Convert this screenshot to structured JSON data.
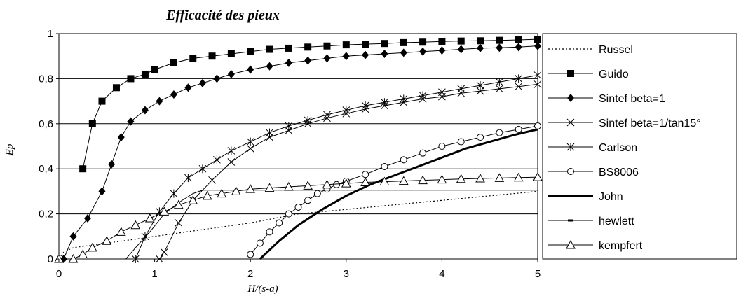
{
  "chart_data": {
    "type": "line",
    "title": "Efficacité des pieux",
    "xlabel": "H/(s-a)",
    "ylabel": "Ep",
    "xlim": [
      0,
      5
    ],
    "ylim": [
      0,
      1
    ],
    "x_ticks": [
      "0",
      "1",
      "2",
      "3",
      "4",
      "5"
    ],
    "y_ticks": [
      "0",
      "0,2",
      "0,4",
      "0,6",
      "0,8",
      "1"
    ],
    "grid": "horizontal",
    "legend": "right",
    "series": [
      {
        "name": "Russel",
        "style": "dotted",
        "marker": "none",
        "points": [
          [
            0,
            0
          ],
          [
            0.05,
            0.03
          ],
          [
            0.15,
            0.05
          ],
          [
            0.5,
            0.07
          ],
          [
            1.0,
            0.1
          ],
          [
            1.5,
            0.13
          ],
          [
            2.0,
            0.16
          ],
          [
            2.5,
            0.2
          ],
          [
            3.0,
            0.22
          ],
          [
            3.5,
            0.24
          ],
          [
            4.0,
            0.26
          ],
          [
            4.5,
            0.28
          ],
          [
            5.0,
            0.3
          ]
        ]
      },
      {
        "name": "Guido",
        "style": "solid",
        "marker": "square",
        "points": [
          [
            0.25,
            0.4
          ],
          [
            0.35,
            0.6
          ],
          [
            0.45,
            0.7
          ],
          [
            0.6,
            0.76
          ],
          [
            0.75,
            0.8
          ],
          [
            0.9,
            0.82
          ],
          [
            1.0,
            0.84
          ],
          [
            1.2,
            0.87
          ],
          [
            1.4,
            0.89
          ],
          [
            1.6,
            0.9
          ],
          [
            1.8,
            0.91
          ],
          [
            2.0,
            0.92
          ],
          [
            2.2,
            0.93
          ],
          [
            2.4,
            0.935
          ],
          [
            2.6,
            0.94
          ],
          [
            2.8,
            0.945
          ],
          [
            3.0,
            0.95
          ],
          [
            3.2,
            0.953
          ],
          [
            3.4,
            0.956
          ],
          [
            3.6,
            0.96
          ],
          [
            3.8,
            0.962
          ],
          [
            4.0,
            0.965
          ],
          [
            4.2,
            0.967
          ],
          [
            4.4,
            0.968
          ],
          [
            4.6,
            0.97
          ],
          [
            4.8,
            0.972
          ],
          [
            5.0,
            0.975
          ]
        ]
      },
      {
        "name": "Sintef beta=1",
        "style": "solid",
        "marker": "diamond",
        "points": [
          [
            0.05,
            0.0
          ],
          [
            0.15,
            0.1
          ],
          [
            0.3,
            0.18
          ],
          [
            0.45,
            0.3
          ],
          [
            0.55,
            0.42
          ],
          [
            0.65,
            0.54
          ],
          [
            0.75,
            0.61
          ],
          [
            0.9,
            0.66
          ],
          [
            1.05,
            0.7
          ],
          [
            1.2,
            0.73
          ],
          [
            1.35,
            0.76
          ],
          [
            1.5,
            0.78
          ],
          [
            1.65,
            0.8
          ],
          [
            1.8,
            0.82
          ],
          [
            2.0,
            0.84
          ],
          [
            2.2,
            0.855
          ],
          [
            2.4,
            0.87
          ],
          [
            2.6,
            0.88
          ],
          [
            2.8,
            0.89
          ],
          [
            3.0,
            0.9
          ],
          [
            3.2,
            0.905
          ],
          [
            3.4,
            0.91
          ],
          [
            3.6,
            0.915
          ],
          [
            3.8,
            0.92
          ],
          [
            4.0,
            0.925
          ],
          [
            4.2,
            0.93
          ],
          [
            4.4,
            0.935
          ],
          [
            4.6,
            0.937
          ],
          [
            4.8,
            0.94
          ],
          [
            5.0,
            0.945
          ]
        ]
      },
      {
        "name": "Sintef beta=1/tan15°",
        "style": "solid",
        "marker": "x",
        "points": [
          [
            1.05,
            0.0
          ],
          [
            1.1,
            0.03
          ],
          [
            1.25,
            0.16
          ],
          [
            1.4,
            0.26
          ],
          [
            1.6,
            0.35
          ],
          [
            1.8,
            0.43
          ],
          [
            2.0,
            0.49
          ],
          [
            2.2,
            0.54
          ],
          [
            2.4,
            0.57
          ],
          [
            2.6,
            0.6
          ],
          [
            2.8,
            0.625
          ],
          [
            3.0,
            0.645
          ],
          [
            3.2,
            0.665
          ],
          [
            3.4,
            0.68
          ],
          [
            3.6,
            0.695
          ],
          [
            3.8,
            0.71
          ],
          [
            4.0,
            0.72
          ],
          [
            4.2,
            0.735
          ],
          [
            4.4,
            0.745
          ],
          [
            4.6,
            0.755
          ],
          [
            4.8,
            0.765
          ],
          [
            5.0,
            0.775
          ]
        ]
      },
      {
        "name": "Carlson",
        "style": "solid",
        "marker": "star",
        "points": [
          [
            0.8,
            0.0
          ],
          [
            0.9,
            0.1
          ],
          [
            1.05,
            0.21
          ],
          [
            1.2,
            0.29
          ],
          [
            1.35,
            0.36
          ],
          [
            1.5,
            0.4
          ],
          [
            1.65,
            0.44
          ],
          [
            1.8,
            0.48
          ],
          [
            2.0,
            0.52
          ],
          [
            2.2,
            0.56
          ],
          [
            2.4,
            0.59
          ],
          [
            2.6,
            0.615
          ],
          [
            2.8,
            0.64
          ],
          [
            3.0,
            0.66
          ],
          [
            3.2,
            0.68
          ],
          [
            3.4,
            0.695
          ],
          [
            3.6,
            0.71
          ],
          [
            3.8,
            0.725
          ],
          [
            4.0,
            0.74
          ],
          [
            4.2,
            0.755
          ],
          [
            4.4,
            0.77
          ],
          [
            4.6,
            0.785
          ],
          [
            4.8,
            0.8
          ],
          [
            5.0,
            0.815
          ]
        ]
      },
      {
        "name": "BS8006",
        "style": "solid",
        "marker": "circle",
        "points": [
          [
            2.0,
            0.02
          ],
          [
            2.1,
            0.07
          ],
          [
            2.2,
            0.12
          ],
          [
            2.3,
            0.16
          ],
          [
            2.4,
            0.2
          ],
          [
            2.5,
            0.23
          ],
          [
            2.6,
            0.26
          ],
          [
            2.7,
            0.29
          ],
          [
            2.8,
            0.31
          ],
          [
            2.9,
            0.33
          ],
          [
            3.0,
            0.345
          ],
          [
            3.2,
            0.375
          ],
          [
            3.4,
            0.41
          ],
          [
            3.6,
            0.44
          ],
          [
            3.8,
            0.47
          ],
          [
            4.0,
            0.5
          ],
          [
            4.2,
            0.52
          ],
          [
            4.4,
            0.54
          ],
          [
            4.6,
            0.56
          ],
          [
            4.8,
            0.575
          ],
          [
            5.0,
            0.59
          ]
        ]
      },
      {
        "name": "John",
        "style": "thick",
        "marker": "none",
        "points": [
          [
            2.1,
            0.0
          ],
          [
            2.3,
            0.08
          ],
          [
            2.5,
            0.15
          ],
          [
            2.75,
            0.22
          ],
          [
            3.0,
            0.28
          ],
          [
            3.25,
            0.33
          ],
          [
            3.5,
            0.37
          ],
          [
            3.75,
            0.41
          ],
          [
            4.0,
            0.45
          ],
          [
            4.25,
            0.49
          ],
          [
            4.5,
            0.52
          ],
          [
            4.75,
            0.55
          ],
          [
            5.0,
            0.575
          ]
        ]
      },
      {
        "name": "hewlett",
        "style": "solid",
        "marker": "dash",
        "points": [
          [
            0.7,
            0.0
          ],
          [
            0.8,
            0.05
          ],
          [
            0.95,
            0.12
          ],
          [
            1.1,
            0.2
          ],
          [
            1.25,
            0.25
          ],
          [
            1.4,
            0.29
          ],
          [
            1.5,
            0.305
          ],
          [
            2.0,
            0.305
          ],
          [
            2.5,
            0.305
          ],
          [
            3.0,
            0.305
          ],
          [
            3.5,
            0.305
          ],
          [
            4.0,
            0.305
          ],
          [
            4.5,
            0.305
          ],
          [
            5.0,
            0.305
          ]
        ]
      },
      {
        "name": "kempfert",
        "style": "solid",
        "marker": "triangle",
        "points": [
          [
            0.0,
            0.0
          ],
          [
            0.15,
            0.0
          ],
          [
            0.25,
            0.02
          ],
          [
            0.35,
            0.05
          ],
          [
            0.5,
            0.08
          ],
          [
            0.65,
            0.12
          ],
          [
            0.8,
            0.15
          ],
          [
            0.95,
            0.18
          ],
          [
            1.1,
            0.21
          ],
          [
            1.25,
            0.24
          ],
          [
            1.4,
            0.26
          ],
          [
            1.55,
            0.28
          ],
          [
            1.7,
            0.29
          ],
          [
            1.85,
            0.3
          ],
          [
            2.0,
            0.31
          ],
          [
            2.2,
            0.315
          ],
          [
            2.4,
            0.32
          ],
          [
            2.6,
            0.325
          ],
          [
            2.8,
            0.33
          ],
          [
            3.0,
            0.335
          ],
          [
            3.2,
            0.34
          ],
          [
            3.4,
            0.343
          ],
          [
            3.6,
            0.346
          ],
          [
            3.8,
            0.349
          ],
          [
            4.0,
            0.352
          ],
          [
            4.2,
            0.355
          ],
          [
            4.4,
            0.357
          ],
          [
            4.6,
            0.359
          ],
          [
            4.8,
            0.361
          ],
          [
            5.0,
            0.363
          ]
        ]
      }
    ]
  }
}
